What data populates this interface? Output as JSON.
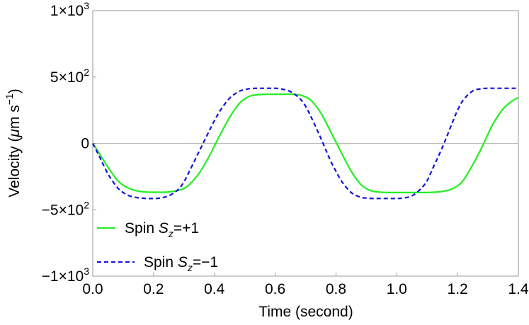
{
  "chart_data": {
    "type": "line",
    "xlabel": "Time (second)",
    "ylabel_parts": {
      "prefix": "Velocity (",
      "mu": "μ",
      "m": "m s",
      "exp": "−1",
      "suffix": ")"
    },
    "xlim": [
      0,
      1.4
    ],
    "ylim": [
      -1000,
      1000
    ],
    "x_ticks": [
      {
        "value": 0.0,
        "label": "0.0"
      },
      {
        "value": 0.2,
        "label": "0.2"
      },
      {
        "value": 0.4,
        "label": "0.4"
      },
      {
        "value": 0.6,
        "label": "0.6"
      },
      {
        "value": 0.8,
        "label": "0.8"
      },
      {
        "value": 1.0,
        "label": "1.0"
      },
      {
        "value": 1.2,
        "label": "1.2"
      },
      {
        "value": 1.4,
        "label": "1.4"
      }
    ],
    "y_ticks": [
      {
        "value": 1000,
        "base": "1×10",
        "exp": "3"
      },
      {
        "value": 500,
        "base": "5×10",
        "exp": "2"
      },
      {
        "value": 0,
        "base": "0",
        "exp": ""
      },
      {
        "value": -500,
        "base": "−5×10",
        "exp": "2"
      },
      {
        "value": -1000,
        "base": "−1×10",
        "exp": "3"
      }
    ],
    "zero_line": true,
    "legend": {
      "placement": "bottom-left"
    },
    "series": [
      {
        "name_parts": {
          "pre": "Spin ",
          "var": "S",
          "sub": "z",
          "post": "=+1"
        },
        "color": "#22ee22",
        "style": "solid",
        "x": [
          0,
          0.02,
          0.05,
          0.08,
          0.1,
          0.12,
          0.15,
          0.18,
          0.2,
          0.22,
          0.25,
          0.28,
          0.3,
          0.32,
          0.35,
          0.38,
          0.4,
          0.42,
          0.45,
          0.48,
          0.5,
          0.52,
          0.55,
          0.58,
          0.6,
          0.62,
          0.65,
          0.68,
          0.7,
          0.72,
          0.75,
          0.78,
          0.8,
          0.82,
          0.85,
          0.88,
          0.9,
          0.92,
          0.95,
          0.98,
          1.0,
          1.02,
          1.05,
          1.08,
          1.1,
          1.12,
          1.15,
          1.18,
          1.2,
          1.22,
          1.25,
          1.28,
          1.3,
          1.32,
          1.35,
          1.38,
          1.4
        ],
        "y": [
          0,
          -70,
          -180,
          -275,
          -315,
          -340,
          -360,
          -367,
          -368,
          -368,
          -366,
          -355,
          -340,
          -305,
          -225,
          -110,
          -20,
          70,
          195,
          295,
          335,
          358,
          368,
          370,
          370,
          370,
          370,
          365,
          350,
          320,
          230,
          100,
          10,
          -80,
          -210,
          -305,
          -340,
          -360,
          -368,
          -370,
          -370,
          -370,
          -370,
          -370,
          -370,
          -368,
          -362,
          -345,
          -320,
          -275,
          -160,
          -30,
          70,
          160,
          260,
          320,
          345
        ]
      },
      {
        "name_parts": {
          "pre": "Spin ",
          "var": "S",
          "sub": "z",
          "post": "=−1"
        },
        "color": "#1111dd",
        "style": "dashed",
        "x": [
          0,
          0.02,
          0.05,
          0.08,
          0.1,
          0.12,
          0.15,
          0.18,
          0.2,
          0.22,
          0.25,
          0.28,
          0.3,
          0.32,
          0.35,
          0.38,
          0.4,
          0.42,
          0.45,
          0.48,
          0.5,
          0.52,
          0.55,
          0.58,
          0.6,
          0.62,
          0.65,
          0.68,
          0.7,
          0.72,
          0.75,
          0.78,
          0.8,
          0.82,
          0.85,
          0.88,
          0.9,
          0.92,
          0.95,
          0.98,
          1.0,
          1.02,
          1.05,
          1.08,
          1.1,
          1.12,
          1.15,
          1.18,
          1.2,
          1.22,
          1.25,
          1.28,
          1.3,
          1.32,
          1.35,
          1.38,
          1.4
        ],
        "y": [
          0,
          -90,
          -230,
          -330,
          -370,
          -395,
          -410,
          -415,
          -415,
          -412,
          -395,
          -350,
          -290,
          -200,
          -60,
          80,
          170,
          250,
          340,
          390,
          405,
          413,
          415,
          415,
          415,
          410,
          390,
          340,
          280,
          190,
          40,
          -120,
          -210,
          -290,
          -370,
          -405,
          -412,
          -415,
          -415,
          -415,
          -415,
          -412,
          -395,
          -340,
          -280,
          -180,
          -30,
          140,
          250,
          330,
          395,
          412,
          415,
          415,
          415,
          415,
          415
        ]
      }
    ]
  }
}
